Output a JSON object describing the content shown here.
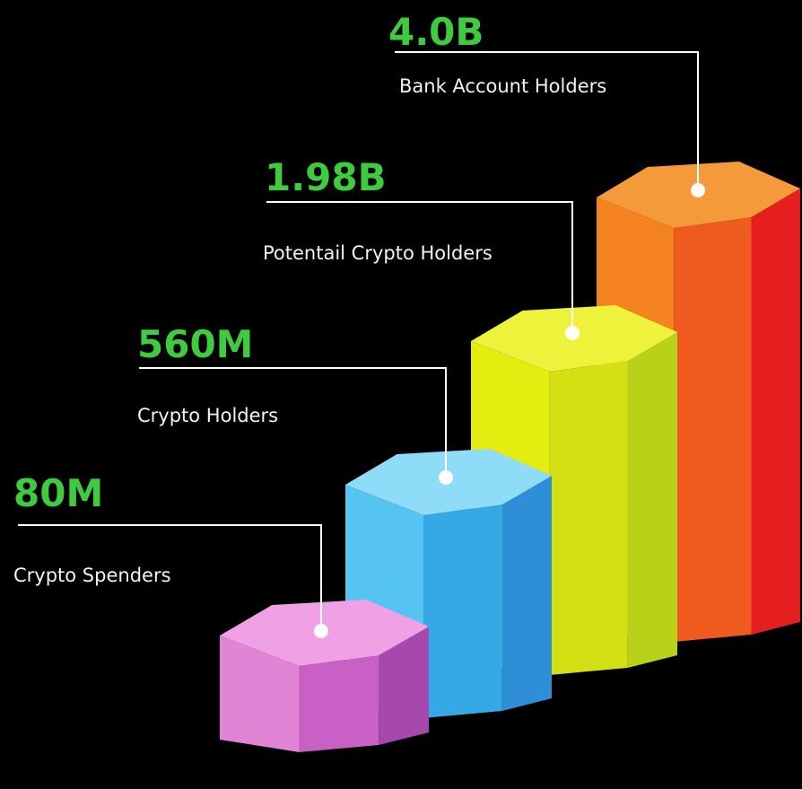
{
  "items": [
    {
      "value": "80M",
      "label": "Crypto Spenders"
    },
    {
      "value": "560M",
      "label": "Crypto Holders"
    },
    {
      "value": "1.98B",
      "label": "Potentail Crypto Holders"
    },
    {
      "value": "4.0B",
      "label": "Bank Account Holders"
    }
  ]
}
